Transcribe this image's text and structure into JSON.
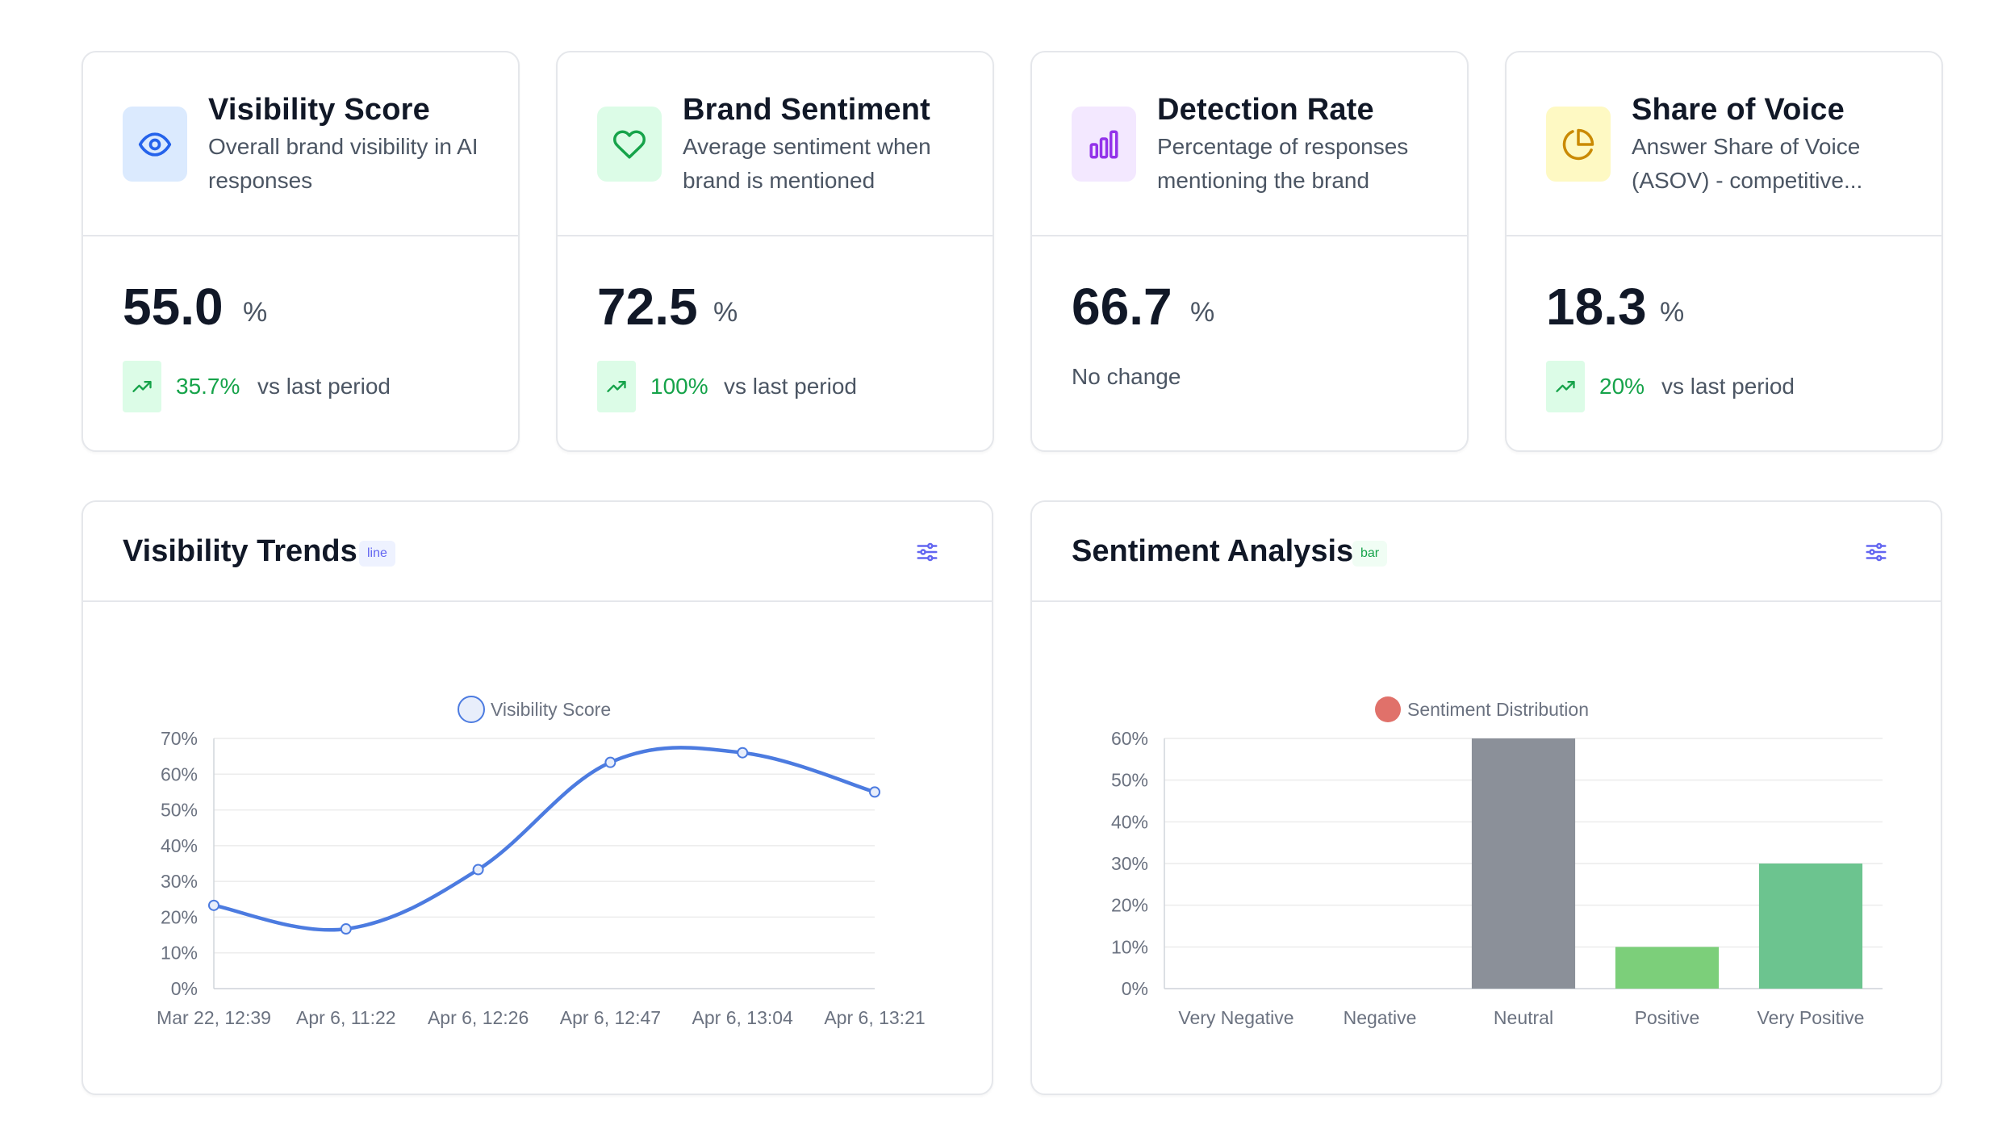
{
  "metrics": [
    {
      "title": "Visibility Score",
      "description": "Overall brand visibility in AI responses",
      "value": "55.0",
      "unit": "%",
      "trend_pct": "35.7%",
      "trend_note": "vs last period",
      "icon": "eye-icon",
      "icon_bg": "#dbeafe",
      "icon_color": "#2563eb"
    },
    {
      "title": "Brand Sentiment",
      "description": "Average sentiment when brand is mentioned",
      "value": "72.5",
      "unit": "%",
      "trend_pct": "100%",
      "trend_note": "vs last period",
      "icon": "heart-icon",
      "icon_bg": "#dcfce7",
      "icon_color": "#16a34a"
    },
    {
      "title": "Detection Rate",
      "description": "Percentage of responses mentioning the brand",
      "value": "66.7",
      "unit": "%",
      "trend_note": "No change",
      "icon": "bar-chart-icon",
      "icon_bg": "#f3e8ff",
      "icon_color": "#9333ea"
    },
    {
      "title": "Share of Voice",
      "description": "Answer Share of Voice (ASOV) - competitive...",
      "value": "18.3",
      "unit": "%",
      "trend_pct": "20%",
      "trend_note": "vs last period",
      "icon": "pie-chart-icon",
      "icon_bg": "#fef9c3",
      "icon_color": "#ca8a04"
    }
  ],
  "trends_card": {
    "title": "Visibility Trends",
    "badge": "line"
  },
  "sentiment_card": {
    "title": "Sentiment Analysis",
    "badge": "bar"
  },
  "colors": {
    "trend_green": "#16a34a",
    "line_blue": "#4c7be0",
    "bar_gray": "#8b9099",
    "bar_green_light": "#7ccf7a",
    "bar_green": "#6cc48f",
    "legend_red": "#e0716a",
    "filter_icon": "#6366f1"
  },
  "chart_data": [
    {
      "type": "line",
      "legend": [
        "Visibility Score"
      ],
      "categories": [
        "Mar 22, 12:39",
        "Apr 6, 11:22",
        "Apr 6, 12:26",
        "Apr 6, 12:47",
        "Apr 6, 13:04",
        "Apr 6, 13:21"
      ],
      "series": [
        {
          "name": "Visibility Score",
          "values": [
            23.3,
            16.7,
            33.3,
            63.3,
            66.0,
            55.0
          ]
        }
      ],
      "yticks": [
        "0%",
        "10%",
        "20%",
        "30%",
        "40%",
        "50%",
        "60%",
        "70%"
      ],
      "ylim": [
        0,
        70
      ],
      "grid": true,
      "legend_position": "top-center"
    },
    {
      "type": "bar",
      "legend": [
        "Sentiment Distribution"
      ],
      "categories": [
        "Very Negative",
        "Negative",
        "Neutral",
        "Positive",
        "Very Positive"
      ],
      "series": [
        {
          "name": "Sentiment Distribution",
          "values": [
            0,
            0,
            60,
            10,
            30
          ]
        }
      ],
      "yticks": [
        "0%",
        "10%",
        "20%",
        "30%",
        "40%",
        "50%",
        "60%"
      ],
      "ylim": [
        0,
        60
      ],
      "grid": true,
      "legend_position": "top-center"
    }
  ]
}
